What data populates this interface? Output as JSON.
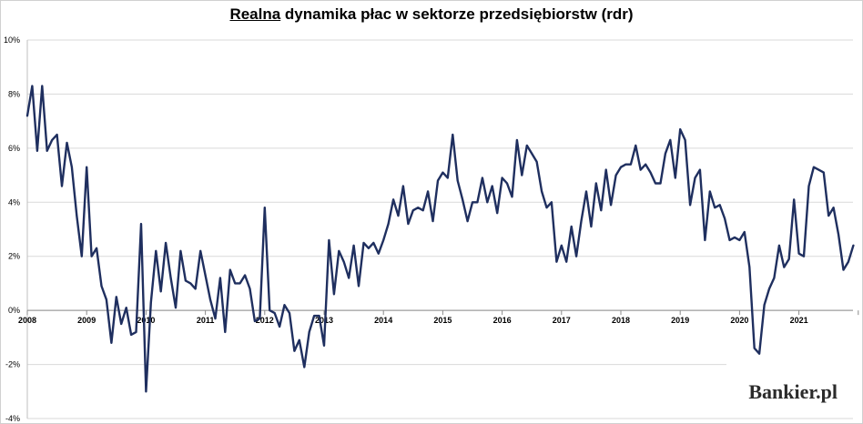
{
  "chart_data": {
    "type": "line",
    "title_underlined": "Realna",
    "title_rest": " dynamika płac w sektorze przedsiębiorstw (rdr)",
    "xlabel": "",
    "ylabel": "",
    "ylim": [
      -4,
      10
    ],
    "y_ticks": [
      "-4%",
      "-2%",
      "0%",
      "2%",
      "4%",
      "6%",
      "8%",
      "10%"
    ],
    "y_tick_values": [
      -4,
      -2,
      0,
      2,
      4,
      6,
      8,
      10
    ],
    "x_ticks": [
      "2008",
      "2009",
      "2010",
      "2011",
      "2012",
      "2013",
      "2014",
      "2015",
      "2016",
      "2017",
      "2018",
      "2019",
      "2020",
      "2021"
    ],
    "x_start_year": 2008,
    "grid": true,
    "line_color": "#1f2f5f",
    "series": [
      {
        "values": [
          7.2,
          8.3,
          5.9,
          8.3,
          5.9,
          6.3,
          6.5,
          4.6,
          6.2,
          5.3,
          3.5,
          2.0,
          5.3,
          2.0,
          2.3,
          0.9,
          0.4,
          -1.2,
          0.5,
          -0.5,
          0.1,
          -0.9,
          -0.8,
          3.2,
          -3.0,
          0.3,
          2.2,
          0.7,
          2.5,
          1.2,
          0.1,
          2.2,
          1.1,
          1.0,
          0.8,
          2.2,
          1.3,
          0.4,
          -0.3,
          1.2,
          -0.8,
          1.5,
          1.0,
          1.0,
          1.3,
          0.8,
          -0.4,
          -0.3,
          3.8,
          0.0,
          -0.1,
          -0.6,
          0.2,
          -0.1,
          -1.5,
          -1.1,
          -2.1,
          -0.8,
          -0.2,
          -0.2,
          -1.3,
          2.6,
          0.6,
          2.2,
          1.8,
          1.2,
          2.4,
          0.9,
          2.5,
          2.3,
          2.5,
          2.1,
          2.6,
          3.2,
          4.1,
          3.5,
          4.6,
          3.2,
          3.7,
          3.8,
          3.7,
          4.4,
          3.3,
          4.8,
          5.1,
          4.9,
          6.5,
          4.8,
          4.1,
          3.3,
          4.0,
          4.0,
          4.9,
          4.0,
          4.6,
          3.6,
          4.9,
          4.7,
          4.2,
          6.3,
          5.0,
          6.1,
          5.8,
          5.5,
          4.4,
          3.8,
          4.0,
          1.8,
          2.4,
          1.8,
          3.1,
          2.0,
          3.3,
          4.4,
          3.1,
          4.7,
          3.7,
          5.2,
          3.9,
          5.0,
          5.3,
          5.4,
          5.4,
          6.1,
          5.2,
          5.4,
          5.1,
          4.7,
          4.7,
          5.8,
          6.3,
          4.9,
          6.7,
          6.3,
          3.9,
          4.9,
          5.2,
          2.6,
          4.4,
          3.8,
          3.9,
          3.4,
          2.6,
          2.7,
          2.6,
          2.9,
          1.6,
          -1.4,
          -1.6,
          0.2,
          0.8,
          1.2,
          2.4,
          1.6,
          1.9,
          4.1,
          2.1,
          2.0,
          4.6,
          5.3,
          5.2,
          5.1,
          3.5,
          3.8,
          2.8,
          1.5,
          1.8,
          2.4
        ]
      }
    ]
  },
  "logo": {
    "text": "Bankier.pl"
  }
}
